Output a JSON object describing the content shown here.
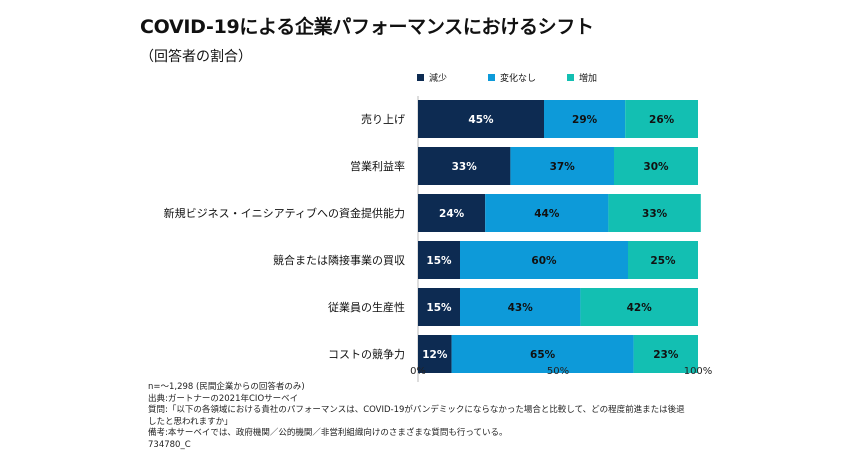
{
  "title": "COVID-19による企業パフォーマンスにおけるシフト",
  "subtitle": "（回答者の割合）",
  "colors": {
    "decrease": "#0d2b52",
    "no_change": "#0d9ad9",
    "increase": "#13bfb2"
  },
  "chart_data": {
    "type": "bar",
    "orientation": "horizontal",
    "stacked": true,
    "categories": [
      "売り上げ",
      "営業利益率",
      "新規ビジネス・イニシアティブへの資金提供能力",
      "競合または隣接事業の買収",
      "従業員の生産性",
      "コストの競争力"
    ],
    "series": [
      {
        "name": "減少",
        "values": [
          45,
          33,
          24,
          15,
          15,
          12
        ]
      },
      {
        "name": "変化なし",
        "values": [
          29,
          37,
          44,
          60,
          43,
          65
        ]
      },
      {
        "name": "増加",
        "values": [
          26,
          30,
          33,
          25,
          42,
          23
        ]
      }
    ],
    "value_labels": [
      [
        "45%",
        "29%",
        "26%"
      ],
      [
        "33%",
        "37%",
        "30%"
      ],
      [
        "24%",
        "44%",
        "33%"
      ],
      [
        "15%",
        "60%",
        "25%"
      ],
      [
        "15%",
        "43%",
        "42%"
      ],
      [
        "12%",
        "65%",
        "23%"
      ]
    ],
    "x_ticks": [
      0,
      50,
      100
    ],
    "x_tick_labels": [
      "0%",
      "50%",
      "100%"
    ],
    "xlim": [
      0,
      100
    ],
    "legend_position": "top",
    "grid": false
  },
  "notes": [
    "n=～1,298 (民間企業からの回答者のみ)",
    "出典:ガートナーの2021年CIOサーベイ",
    "質問:「以下の各領域における貴社のパフォーマンスは、COVID-19がパンデミックにならなかった場合と比較して、どの程度前進または後退",
    "したと思われますか」",
    "備考:本サーベイでは、政府機関／公的機関／非営利組織向けのさまざまな質問も行っている。",
    "734780_C"
  ]
}
